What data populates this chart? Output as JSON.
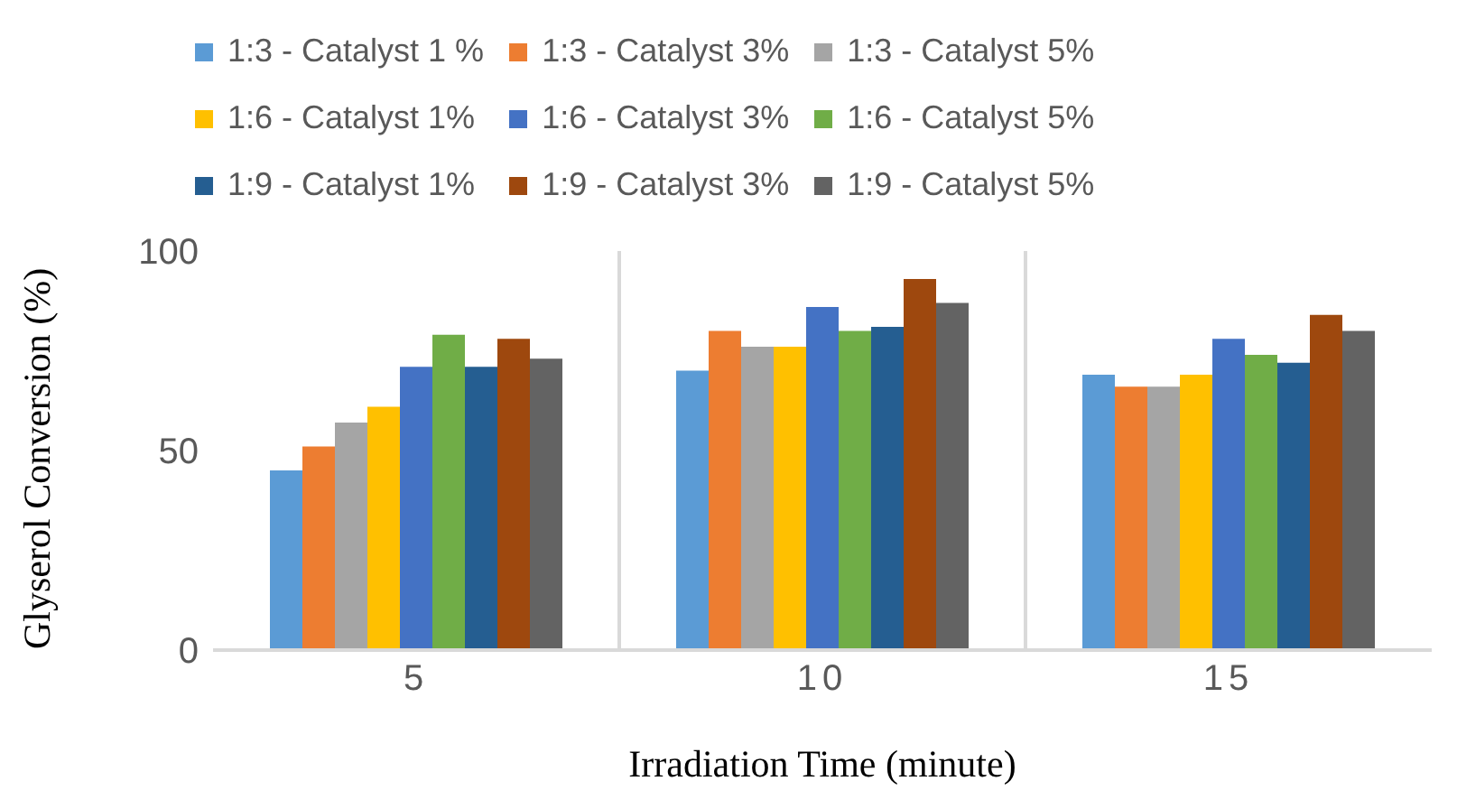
{
  "chart_data": {
    "type": "bar",
    "xlabel": "Irradiation Time (minute)",
    "ylabel": "Glyserol Conversion (%)",
    "categories": [
      "5",
      "10",
      "15"
    ],
    "series": [
      {
        "name": "1:3 - Catalyst 1 %",
        "color": "#5b9bd5",
        "values": [
          45,
          70,
          69
        ]
      },
      {
        "name": "1:3 - Catalyst 3%",
        "color": "#ed7d31",
        "values": [
          51,
          80,
          66
        ]
      },
      {
        "name": "1:3 - Catalyst 5%",
        "color": "#a5a5a5",
        "values": [
          57,
          76,
          66
        ]
      },
      {
        "name": "1:6 - Catalyst 1%",
        "color": "#ffc000",
        "values": [
          61,
          76,
          69
        ]
      },
      {
        "name": "1:6 - Catalyst 3%",
        "color": "#4472c4",
        "values": [
          71,
          86,
          78
        ]
      },
      {
        "name": "1:6 - Catalyst 5%",
        "color": "#70ad47",
        "values": [
          79,
          80,
          74
        ]
      },
      {
        "name": "1:9 - Catalyst 1%",
        "color": "#255e91",
        "values": [
          71,
          81,
          72
        ]
      },
      {
        "name": "1:9 - Catalyst 3%",
        "color": "#9e480e",
        "values": [
          78,
          93,
          84
        ]
      },
      {
        "name": "1:9 - Catalyst 5%",
        "color": "#636363",
        "values": [
          73,
          87,
          80
        ]
      }
    ],
    "ylim": [
      0,
      100
    ],
    "yticks": [
      0,
      50,
      100
    ],
    "grid": "x",
    "legend": "top"
  }
}
